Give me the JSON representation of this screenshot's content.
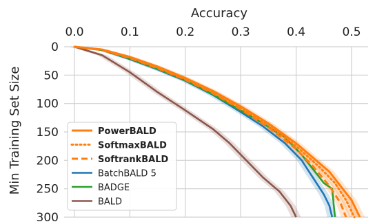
{
  "chart_data": {
    "type": "line",
    "xlabel": "Accuracy",
    "ylabel": "Min Training Set Size",
    "xlim": [
      -0.02,
      0.54
    ],
    "ylim": [
      0,
      300
    ],
    "y_inverted": true,
    "x_axis_position": "top",
    "grid": true,
    "legend_position": "bottom-left",
    "x_ticks": [
      0.0,
      0.1,
      0.2,
      0.3,
      0.4,
      0.5
    ],
    "x_tick_labels": [
      "0.0",
      "0.1",
      "0.2",
      "0.3",
      "0.4",
      "0.5"
    ],
    "y_ticks": [
      0,
      50,
      100,
      150,
      200,
      250,
      300
    ],
    "y_tick_labels": [
      "0",
      "50",
      "100",
      "150",
      "200",
      "250",
      "300"
    ],
    "series": [
      {
        "name": "PowerBALD",
        "color": "#ff7f0e",
        "style": "solid",
        "bold": true,
        "band": true,
        "points": [
          [
            0.0,
            0
          ],
          [
            0.05,
            5
          ],
          [
            0.1,
            18
          ],
          [
            0.15,
            35
          ],
          [
            0.2,
            55
          ],
          [
            0.25,
            78
          ],
          [
            0.3,
            105
          ],
          [
            0.35,
            135
          ],
          [
            0.4,
            170
          ],
          [
            0.43,
            195
          ],
          [
            0.46,
            220
          ],
          [
            0.48,
            245
          ],
          [
            0.5,
            270
          ],
          [
            0.515,
            300
          ]
        ]
      },
      {
        "name": "SoftmaxBALD",
        "color": "#ff7f0e",
        "style": "dotted",
        "bold": true,
        "band": true,
        "points": [
          [
            0.0,
            0
          ],
          [
            0.05,
            5
          ],
          [
            0.1,
            19
          ],
          [
            0.15,
            37
          ],
          [
            0.2,
            57
          ],
          [
            0.25,
            80
          ],
          [
            0.3,
            108
          ],
          [
            0.35,
            138
          ],
          [
            0.4,
            175
          ],
          [
            0.44,
            210
          ],
          [
            0.47,
            240
          ],
          [
            0.49,
            270
          ],
          [
            0.505,
            300
          ]
        ]
      },
      {
        "name": "SoftrankBALD",
        "color": "#ff7f0e",
        "style": "dashed",
        "bold": true,
        "band": true,
        "points": [
          [
            0.0,
            0
          ],
          [
            0.05,
            6
          ],
          [
            0.1,
            20
          ],
          [
            0.15,
            38
          ],
          [
            0.2,
            58
          ],
          [
            0.25,
            82
          ],
          [
            0.3,
            110
          ],
          [
            0.35,
            142
          ],
          [
            0.4,
            180
          ],
          [
            0.43,
            210
          ],
          [
            0.46,
            245
          ],
          [
            0.48,
            275
          ],
          [
            0.49,
            300
          ]
        ]
      },
      {
        "name": "BatchBALD 5",
        "color": "#1f77b4",
        "style": "solid",
        "bold": false,
        "band": true,
        "points": [
          [
            0.0,
            0
          ],
          [
            0.05,
            6
          ],
          [
            0.1,
            22
          ],
          [
            0.15,
            40
          ],
          [
            0.2,
            60
          ],
          [
            0.25,
            85
          ],
          [
            0.3,
            115
          ],
          [
            0.34,
            140
          ],
          [
            0.38,
            170
          ],
          [
            0.41,
            200
          ],
          [
            0.43,
            230
          ],
          [
            0.45,
            260
          ],
          [
            0.46,
            280
          ],
          [
            0.465,
            300
          ]
        ]
      },
      {
        "name": "BADGE",
        "color": "#2ca02c",
        "style": "solid",
        "bold": false,
        "band": false,
        "points": [
          [
            0.0,
            0
          ],
          [
            0.05,
            6
          ],
          [
            0.1,
            21
          ],
          [
            0.15,
            39
          ],
          [
            0.2,
            59
          ],
          [
            0.25,
            84
          ],
          [
            0.3,
            112
          ],
          [
            0.34,
            135
          ],
          [
            0.38,
            160
          ],
          [
            0.41,
            190
          ],
          [
            0.43,
            215
          ],
          [
            0.45,
            240
          ],
          [
            0.465,
            250
          ],
          [
            0.47,
            300
          ]
        ]
      },
      {
        "name": "BALD",
        "color": "#8c564b",
        "style": "solid",
        "bold": false,
        "band": true,
        "points": [
          [
            0.0,
            0
          ],
          [
            0.05,
            15
          ],
          [
            0.1,
            45
          ],
          [
            0.15,
            80
          ],
          [
            0.2,
            112
          ],
          [
            0.25,
            145
          ],
          [
            0.28,
            170
          ],
          [
            0.31,
            200
          ],
          [
            0.34,
            230
          ],
          [
            0.37,
            255
          ],
          [
            0.39,
            280
          ],
          [
            0.4,
            300
          ]
        ]
      }
    ]
  }
}
